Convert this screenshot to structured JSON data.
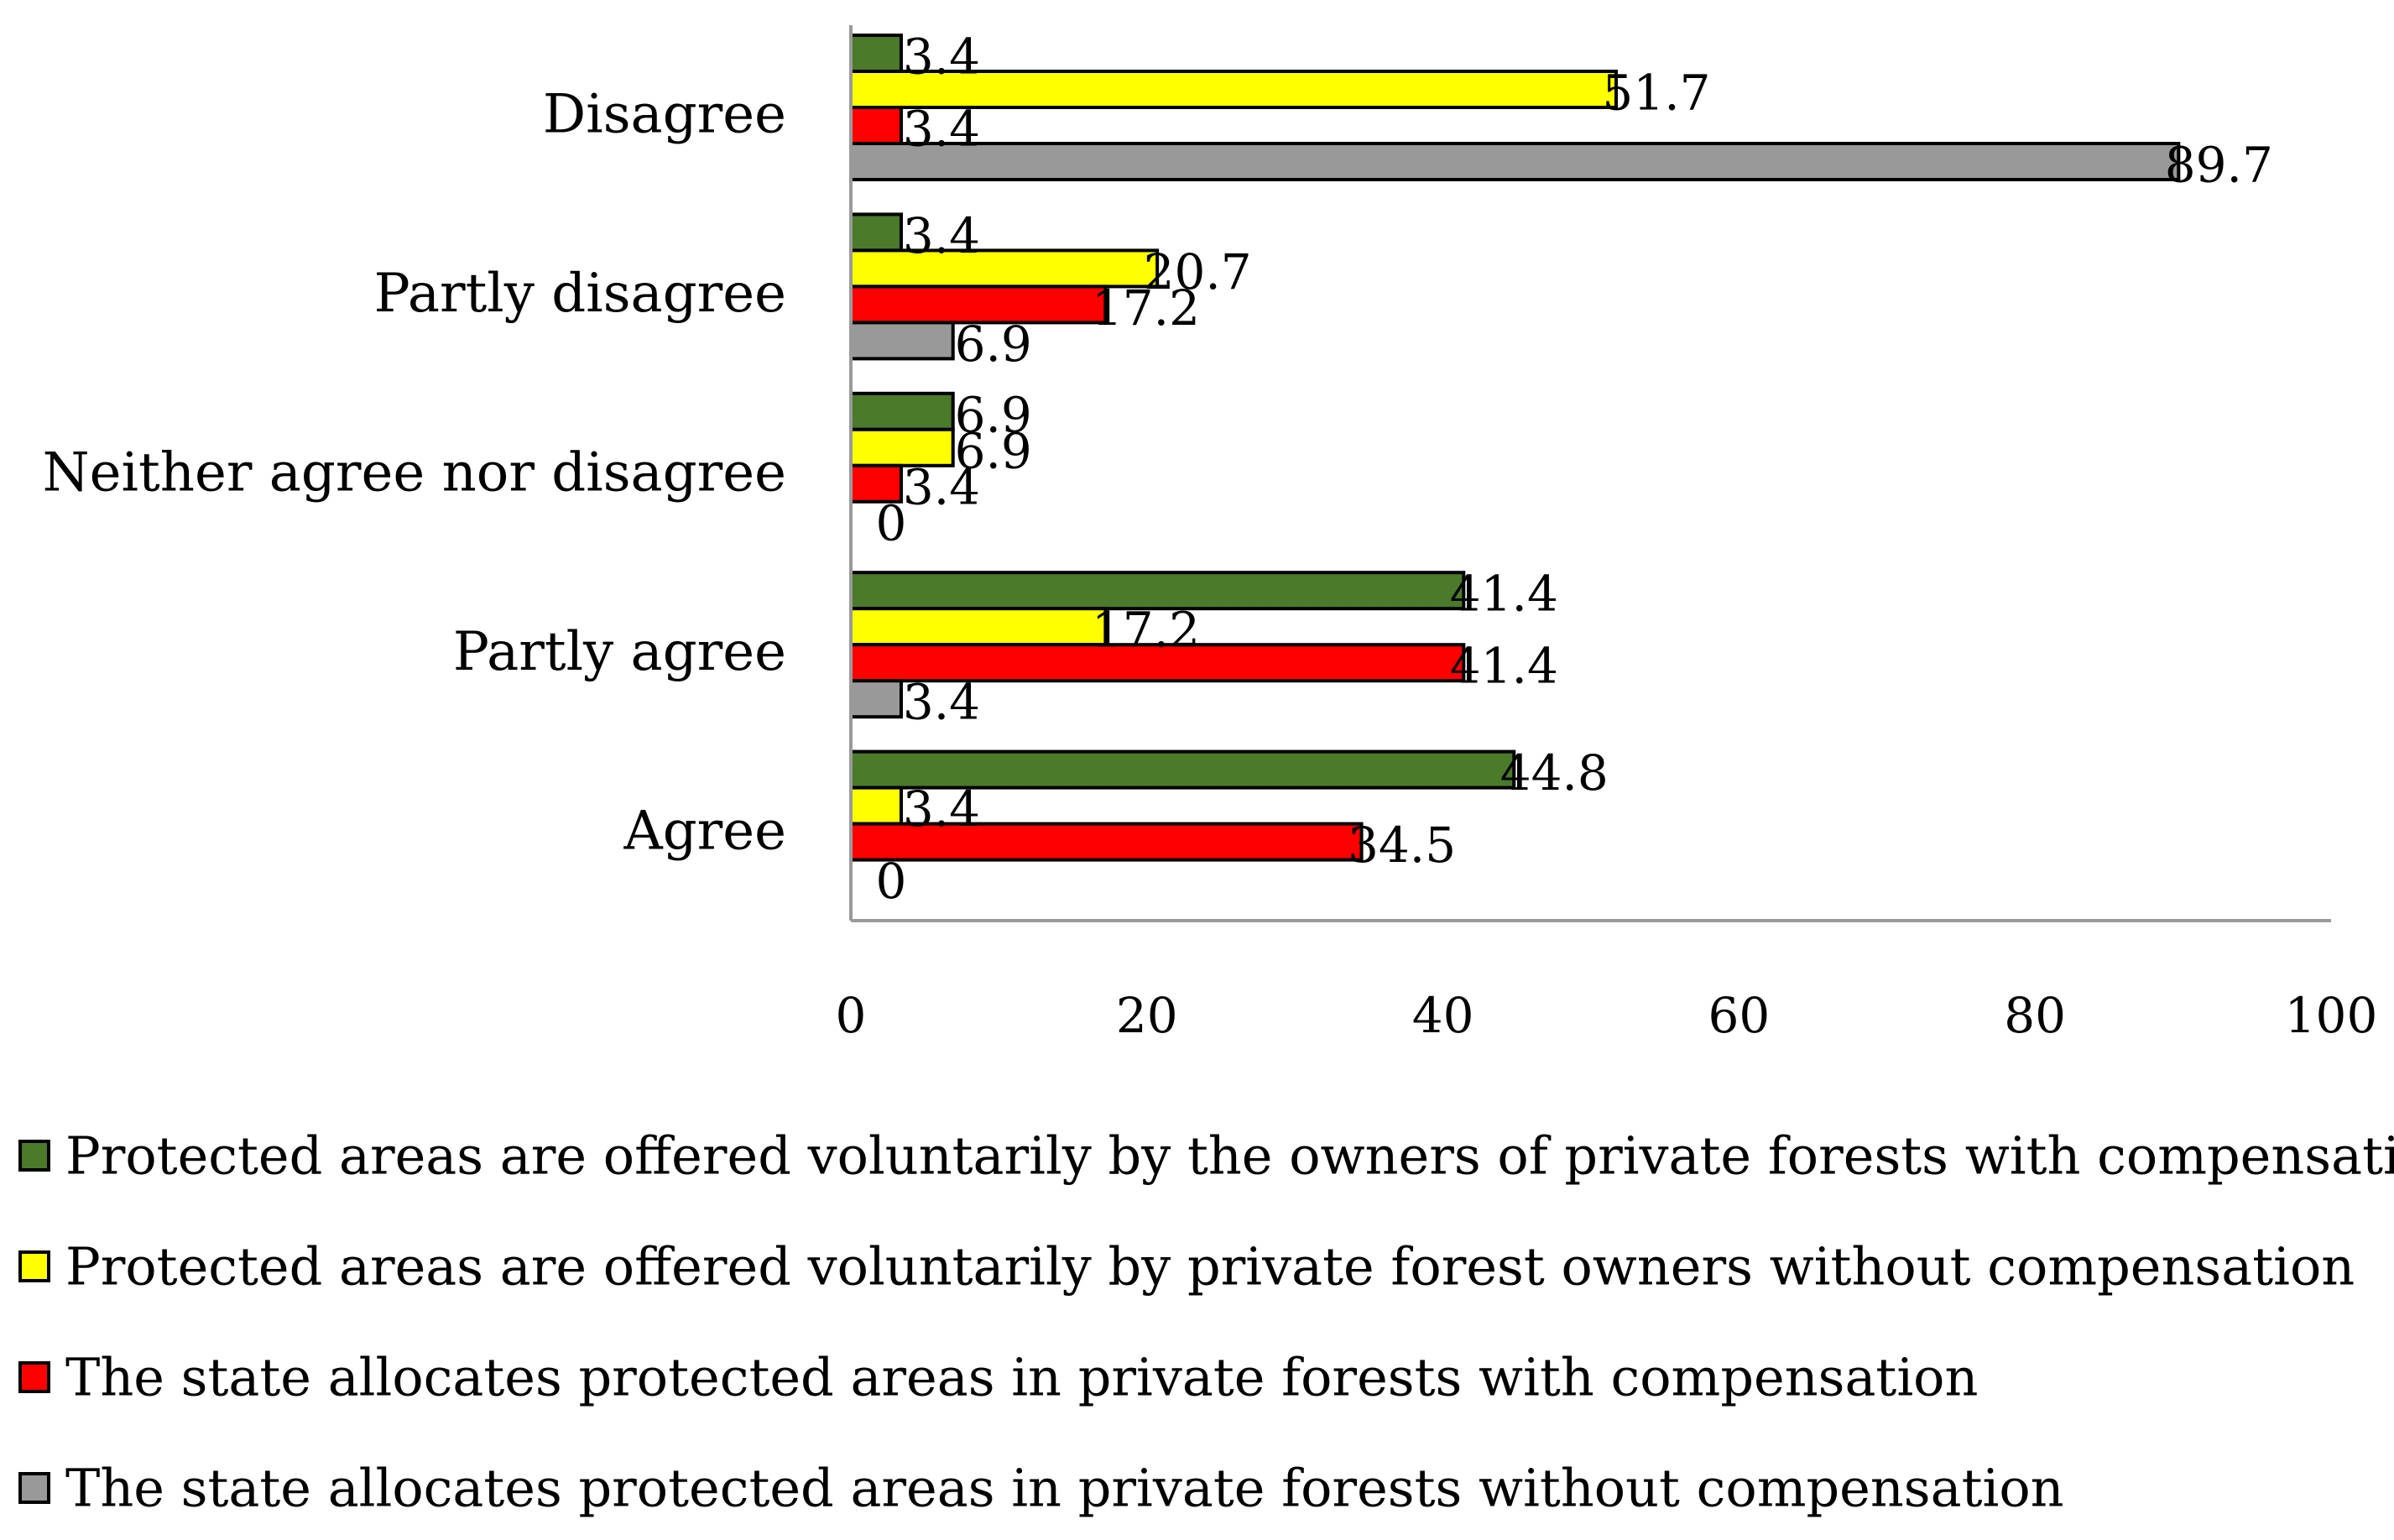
{
  "chart_data": {
    "type": "bar",
    "orientation": "horizontal",
    "title": "",
    "xlabel": "",
    "ylabel": "",
    "categories": [
      "Disagree",
      "Partly disagree",
      "Neither agree nor disagree",
      "Partly agree",
      "Agree"
    ],
    "xlim": [
      0,
      100
    ],
    "xticks": [
      "0",
      "20",
      "40",
      "60",
      "80",
      "100"
    ],
    "grid": false,
    "legend_position": "bottom",
    "series": [
      {
        "name": "Protected areas are offered voluntarily by the owners of private forests with compensation",
        "color": "#4a7a2a",
        "values": [
          3.4,
          3.4,
          6.9,
          41.4,
          44.8
        ],
        "labels": [
          "3.4",
          "3.4",
          "6.9",
          "41.4",
          "44.8"
        ]
      },
      {
        "name": "Protected areas are offered voluntarily by private forest owners without compensation",
        "color": "#ffff00",
        "values": [
          51.7,
          20.7,
          6.9,
          17.2,
          3.4
        ],
        "labels": [
          "51.7",
          "20.7",
          "6.9",
          "17.2",
          "3.4"
        ]
      },
      {
        "name": "The state allocates protected areas in private forests with compensation",
        "color": "#ff0000",
        "values": [
          3.4,
          17.2,
          3.4,
          41.4,
          34.5
        ],
        "labels": [
          "3.4",
          "17.2",
          "3.4",
          "41.4",
          "34.5"
        ]
      },
      {
        "name": "The state allocates protected areas in private forests without compensation",
        "color": "#999999",
        "values": [
          89.7,
          6.9,
          0,
          3.4,
          0
        ],
        "labels": [
          "89.7",
          "6.9",
          "0",
          "3.4",
          "0"
        ]
      }
    ]
  }
}
